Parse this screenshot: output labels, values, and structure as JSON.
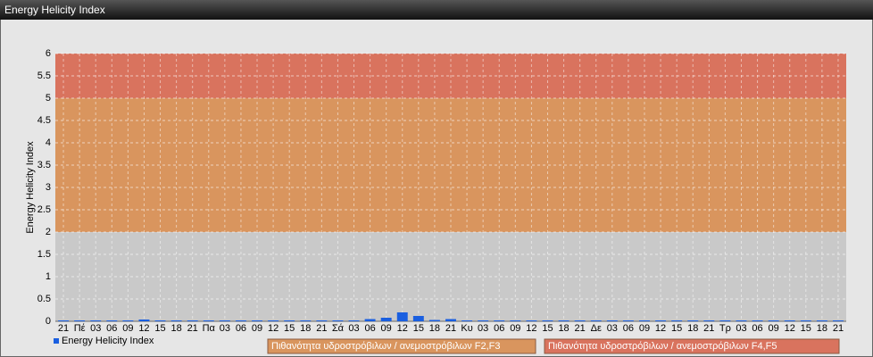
{
  "chart_data": {
    "type": "bar",
    "title": "Energy Helicity Index",
    "y_label": "Energy Helicity Index",
    "categories": [
      "21",
      "Πέ",
      "03",
      "06",
      "09",
      "12",
      "15",
      "18",
      "21",
      "Πα",
      "03",
      "06",
      "09",
      "12",
      "15",
      "18",
      "21",
      "Σά",
      "03",
      "06",
      "09",
      "12",
      "15",
      "18",
      "21",
      "Κυ",
      "03",
      "06",
      "09",
      "12",
      "15",
      "18",
      "21",
      "Δε",
      "03",
      "06",
      "09",
      "12",
      "15",
      "18",
      "21",
      "Τρ",
      "03",
      "06",
      "09",
      "12",
      "15",
      "18",
      "21"
    ],
    "series": [
      {
        "name": "Energy Helicity Index",
        "color": "#1a5fe0",
        "values": [
          0.02,
          0.02,
          0.02,
          0.02,
          0.02,
          0.04,
          0.02,
          0.02,
          0.02,
          0.02,
          0.02,
          0.02,
          0.02,
          0.02,
          0.02,
          0.02,
          0.02,
          0.02,
          0.02,
          0.05,
          0.08,
          0.2,
          0.12,
          0.03,
          0.05,
          0.02,
          0.02,
          0.02,
          0.02,
          0.02,
          0.02,
          0.02,
          0.02,
          0.02,
          0.02,
          0.02,
          0.02,
          0.02,
          0.02,
          0.02,
          0.02,
          0.02,
          0.02,
          0.02,
          0.02,
          0.02,
          0.02,
          0.02,
          0.02
        ]
      }
    ],
    "bands": [
      {
        "name": "Πιθανότητα υδροστρόβιλων / ανεμοστρόβιλων F2,F3",
        "from": 2,
        "to": 5,
        "color": "#d9955e"
      },
      {
        "name": "Πιθανότητα υδροστρόβιλων / ανεμοστρόβιλων F4,F5",
        "from": 5,
        "to": 6,
        "color": "#d9735e"
      }
    ],
    "ylim": [
      0,
      6
    ],
    "yticks": [
      0,
      0.5,
      1,
      1.5,
      2,
      2.5,
      3,
      3.5,
      4,
      4.5,
      5,
      5.5,
      6
    ],
    "grid": true
  }
}
